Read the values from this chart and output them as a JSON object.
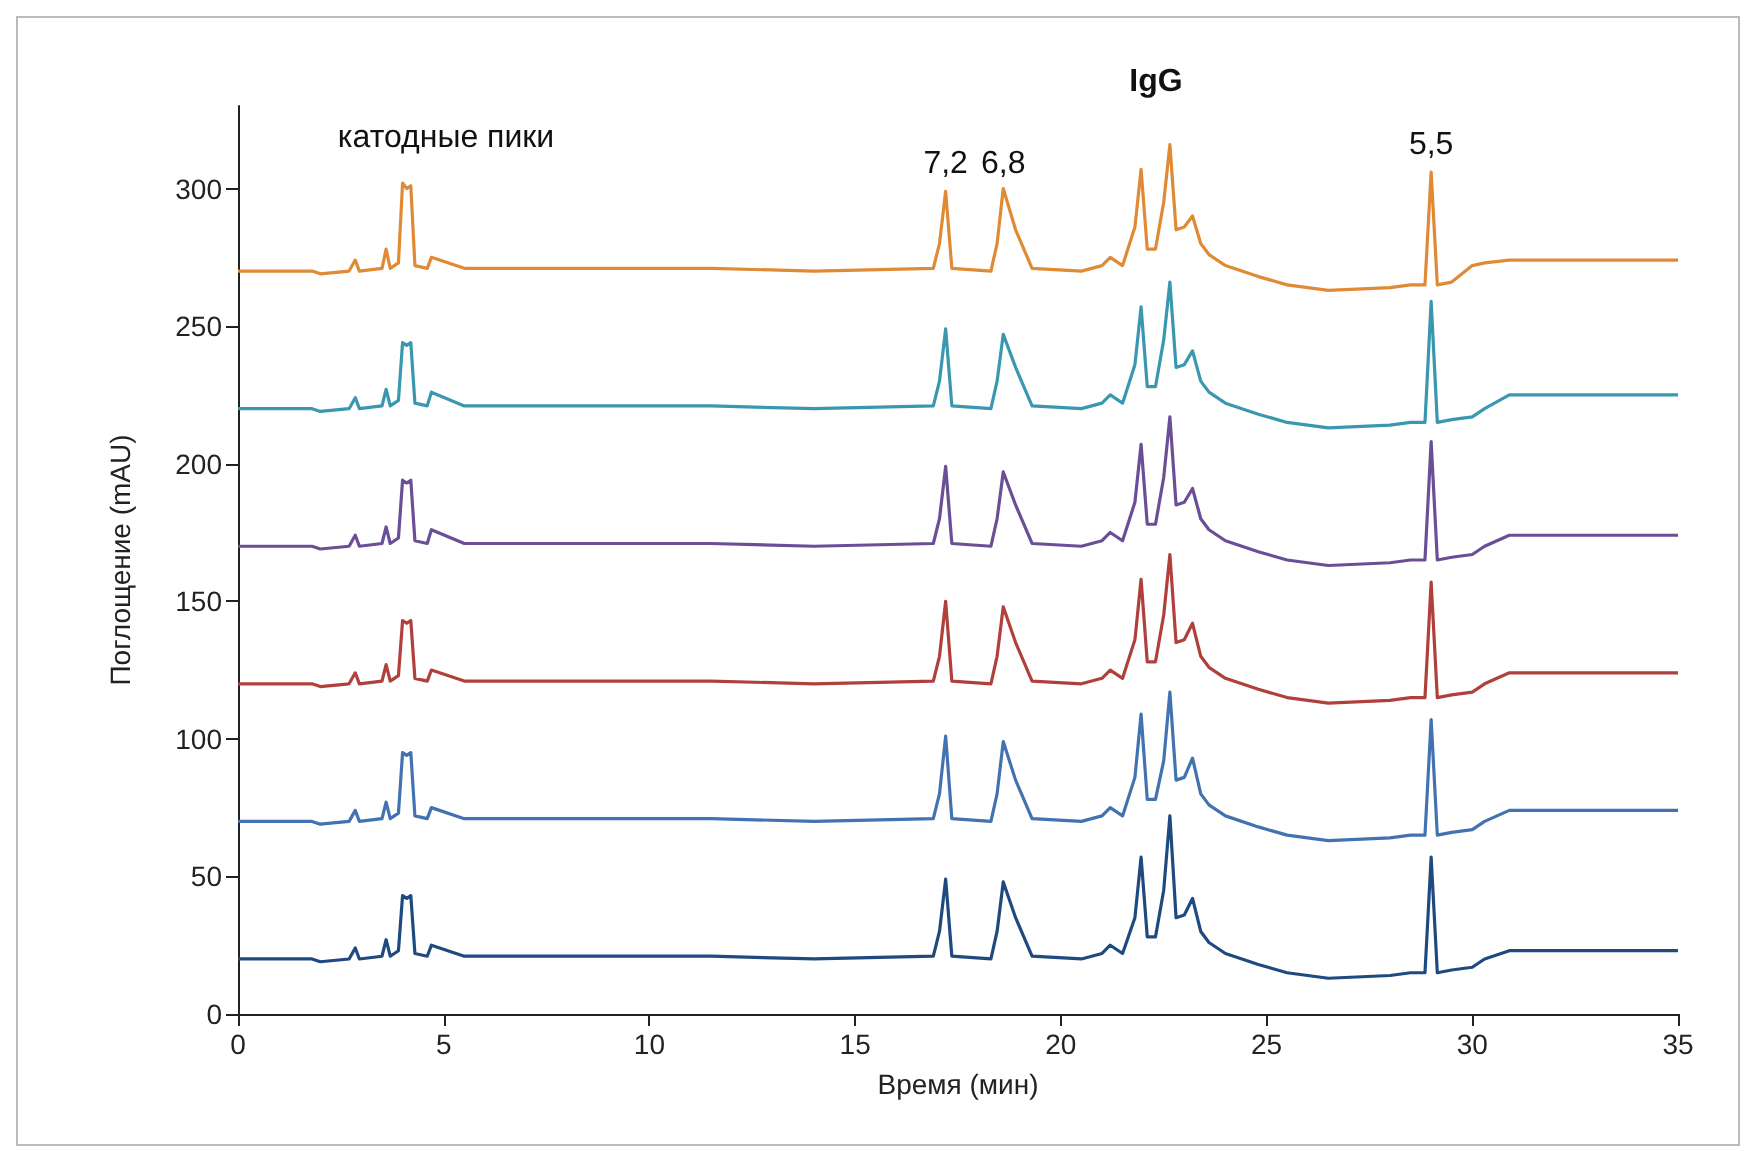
{
  "chart_data": {
    "type": "line",
    "xlabel": "Время (мин)",
    "ylabel": "Поглощение (mAU)",
    "xlim": [
      0,
      35
    ],
    "xticks": [
      0,
      5,
      10,
      15,
      20,
      25,
      30,
      35
    ],
    "ylim": [
      0,
      330
    ],
    "yticks": [
      0,
      50,
      100,
      150,
      200,
      250,
      300
    ],
    "x": [
      0,
      1.8,
      2.0,
      2.7,
      2.85,
      2.95,
      3.5,
      3.6,
      3.7,
      3.9,
      4.0,
      4.1,
      4.2,
      4.3,
      4.6,
      4.7,
      5.5,
      9,
      11.5,
      14,
      16.9,
      17.05,
      17.2,
      17.35,
      18.3,
      18.45,
      18.6,
      18.9,
      19.3,
      20.5,
      21.0,
      21.2,
      21.5,
      21.8,
      21.95,
      22.1,
      22.3,
      22.5,
      22.65,
      22.8,
      23.0,
      23.2,
      23.4,
      23.6,
      24.0,
      24.8,
      25.5,
      26.5,
      28.0,
      28.5,
      28.85,
      29.0,
      29.15,
      29.5,
      30.0,
      30.3,
      30.9,
      35
    ],
    "series": [
      {
        "color": "#1f4a80",
        "values": [
          20,
          20,
          19,
          20,
          24,
          20,
          21,
          27,
          21,
          23,
          43,
          42,
          43,
          22,
          21,
          25,
          21,
          21,
          21,
          20,
          21,
          30,
          49,
          21,
          20,
          30,
          48,
          35,
          21,
          20,
          22,
          25,
          22,
          35,
          57,
          28,
          28,
          45,
          72,
          35,
          36,
          42,
          30,
          26,
          22,
          18,
          15,
          13,
          14,
          15,
          15,
          57,
          15,
          16,
          17,
          20,
          23,
          23
        ]
      },
      {
        "color": "#4273b0",
        "values": [
          70,
          70,
          69,
          70,
          74,
          70,
          71,
          77,
          71,
          73,
          95,
          94,
          95,
          72,
          71,
          75,
          71,
          71,
          71,
          70,
          71,
          80,
          101,
          71,
          70,
          80,
          99,
          85,
          71,
          70,
          72,
          75,
          72,
          86,
          109,
          78,
          78,
          92,
          117,
          85,
          86,
          93,
          80,
          76,
          72,
          68,
          65,
          63,
          64,
          65,
          65,
          107,
          65,
          66,
          67,
          70,
          74,
          74
        ]
      },
      {
        "color": "#b0403c",
        "values": [
          120,
          120,
          119,
          120,
          124,
          120,
          121,
          127,
          121,
          123,
          143,
          142,
          143,
          122,
          121,
          125,
          121,
          121,
          121,
          120,
          121,
          130,
          150,
          121,
          120,
          130,
          148,
          135,
          121,
          120,
          122,
          125,
          122,
          136,
          158,
          128,
          128,
          145,
          167,
          135,
          136,
          142,
          130,
          126,
          122,
          118,
          115,
          113,
          114,
          115,
          115,
          157,
          115,
          116,
          117,
          120,
          124,
          124
        ]
      },
      {
        "color": "#6b4f96",
        "values": [
          170,
          170,
          169,
          170,
          174,
          170,
          171,
          177,
          171,
          173,
          194,
          193,
          194,
          172,
          171,
          176,
          171,
          171,
          171,
          170,
          171,
          180,
          199,
          171,
          170,
          180,
          197,
          185,
          171,
          170,
          172,
          175,
          172,
          186,
          207,
          178,
          178,
          195,
          217,
          185,
          186,
          191,
          180,
          176,
          172,
          168,
          165,
          163,
          164,
          165,
          165,
          208,
          165,
          166,
          167,
          170,
          174,
          174
        ]
      },
      {
        "color": "#3a97b0",
        "values": [
          220,
          220,
          219,
          220,
          224,
          220,
          221,
          227,
          221,
          223,
          244,
          243,
          244,
          222,
          221,
          226,
          221,
          221,
          221,
          220,
          221,
          230,
          249,
          221,
          220,
          230,
          247,
          235,
          221,
          220,
          222,
          225,
          222,
          236,
          257,
          228,
          228,
          245,
          266,
          235,
          236,
          241,
          230,
          226,
          222,
          218,
          215,
          213,
          214,
          215,
          215,
          259,
          215,
          216,
          217,
          220,
          225,
          225
        ]
      },
      {
        "color": "#e08a35",
        "values": [
          270,
          270,
          269,
          270,
          274,
          270,
          271,
          278,
          271,
          273,
          302,
          300,
          301,
          272,
          271,
          275,
          271,
          271,
          271,
          270,
          271,
          280,
          299,
          271,
          270,
          280,
          300,
          285,
          271,
          270,
          272,
          275,
          272,
          286,
          307,
          278,
          278,
          295,
          316,
          285,
          286,
          290,
          280,
          276,
          272,
          268,
          265,
          263,
          264,
          265,
          265,
          306,
          265,
          266,
          272,
          273,
          274,
          274
        ]
      }
    ],
    "annotations": [
      "катодные пики",
      {
        "text": "7,2",
        "x": 17.2,
        "y": 303
      },
      {
        "text": "6,8",
        "x": 18.6,
        "y": 303
      },
      "IgG",
      {
        "text": "5,5",
        "x": 29,
        "y": 310
      }
    ]
  }
}
